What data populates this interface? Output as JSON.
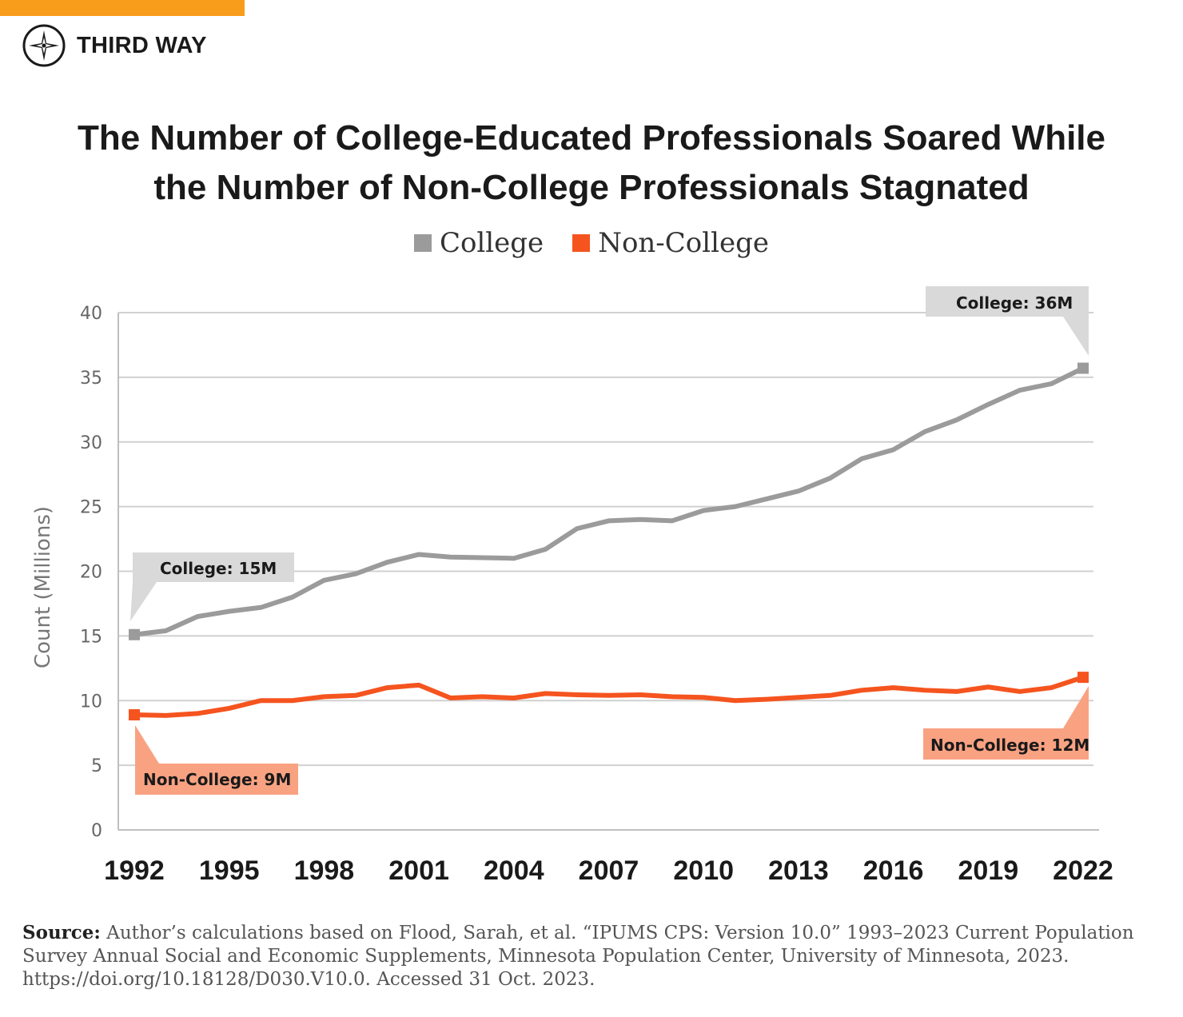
{
  "brand": {
    "name": "THIRD WAY",
    "accent_color": "#f89c1c",
    "icon": "compass-star-icon"
  },
  "title_line1": "The Number of College-Educated Professionals Soared While",
  "title_line2": "the Number of Non-College Professionals Stagnated",
  "source": {
    "label": "Source:",
    "text": "Author’s calculations based on Flood, Sarah, et al. “IPUMS CPS: Version 10.0” 1993–2023 Current Population Survey Annual Social and Economic Supplements, Minnesota Population Center, University of Minnesota, 2023. https://doi.org/10.18128/D030.V10.0. Accessed 31 Oct. 2023."
  },
  "chart_data": {
    "type": "line",
    "title": "The Number of College-Educated Professionals Soared While the Number of Non-College Professionals Stagnated",
    "xlabel": "",
    "ylabel": "Count (Millions)",
    "ylim": [
      0,
      40
    ],
    "yticks": [
      0,
      5,
      10,
      15,
      20,
      25,
      30,
      35,
      40
    ],
    "xlim": [
      1992,
      2022
    ],
    "xticks": [
      1992,
      1995,
      1998,
      2001,
      2004,
      2007,
      2010,
      2013,
      2016,
      2019,
      2022
    ],
    "grid": true,
    "legend_position": "top-center",
    "x": [
      1992,
      1993,
      1994,
      1995,
      1996,
      1997,
      1998,
      1999,
      2000,
      2001,
      2002,
      2003,
      2004,
      2005,
      2006,
      2007,
      2008,
      2009,
      2010,
      2011,
      2012,
      2013,
      2014,
      2015,
      2016,
      2017,
      2018,
      2019,
      2020,
      2021,
      2022
    ],
    "series": [
      {
        "name": "College",
        "color": "#9b9b9b",
        "values": [
          15.1,
          15.4,
          16.5,
          16.9,
          17.2,
          18.0,
          19.3,
          19.8,
          20.7,
          21.3,
          21.1,
          21.05,
          21.0,
          21.7,
          23.3,
          23.9,
          24.0,
          23.9,
          24.7,
          25.0,
          25.6,
          26.2,
          27.2,
          28.7,
          29.4,
          30.8,
          31.7,
          32.9,
          34.0,
          34.5,
          35.7
        ]
      },
      {
        "name": "Non-College",
        "color": "#f5541f",
        "values": [
          8.9,
          8.85,
          9.0,
          9.4,
          10.0,
          10.0,
          10.3,
          10.4,
          11.0,
          11.2,
          10.2,
          10.3,
          10.2,
          10.55,
          10.45,
          10.4,
          10.45,
          10.3,
          10.25,
          10.0,
          10.1,
          10.25,
          10.4,
          10.8,
          11.0,
          10.8,
          10.7,
          11.05,
          10.7,
          11.0,
          11.8
        ]
      }
    ],
    "annotations": [
      {
        "series": "College",
        "year": 1992,
        "text": "College: 15M",
        "fill": "#d9d9d9"
      },
      {
        "series": "College",
        "year": 2022,
        "text": "College: 36M",
        "fill": "#d9d9d9"
      },
      {
        "series": "Non-College",
        "year": 1992,
        "text": "Non-College: 9M",
        "fill": "#f9a282"
      },
      {
        "series": "Non-College",
        "year": 2022,
        "text": "Non-College: 12M",
        "fill": "#f9a282"
      }
    ]
  }
}
